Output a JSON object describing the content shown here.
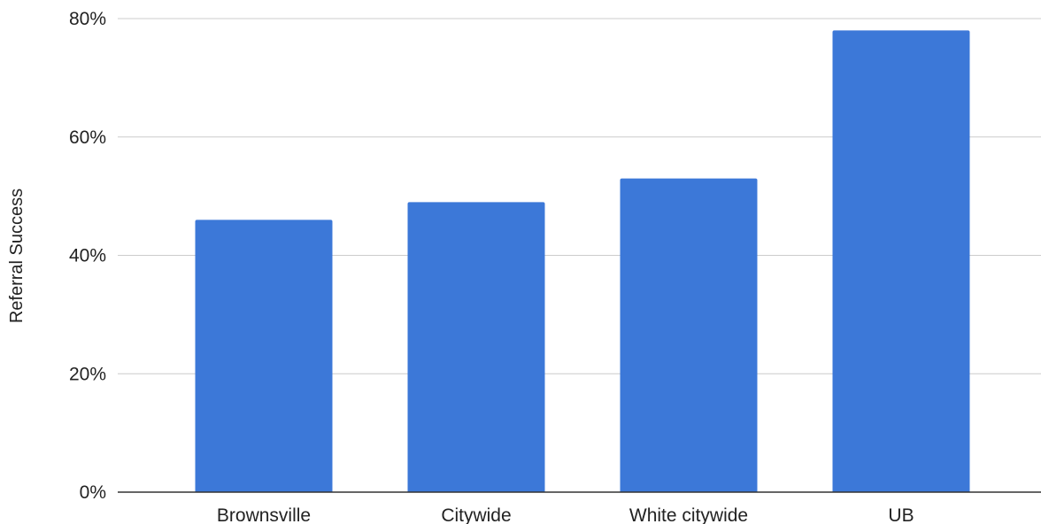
{
  "chart_data": {
    "type": "bar",
    "title": "",
    "xlabel": "",
    "ylabel": "Referral Success",
    "categories": [
      "Brownsville",
      "Citywide",
      "White citywide",
      "UB"
    ],
    "values": [
      46,
      49,
      53,
      78
    ],
    "ylim": [
      0,
      80
    ],
    "yticks": [
      0,
      20,
      40,
      60,
      80
    ],
    "ytick_labels": [
      "0%",
      "20%",
      "40%",
      "60%",
      "80%"
    ],
    "grid": true,
    "legend": "none",
    "bar_color": "#3c78d8"
  }
}
